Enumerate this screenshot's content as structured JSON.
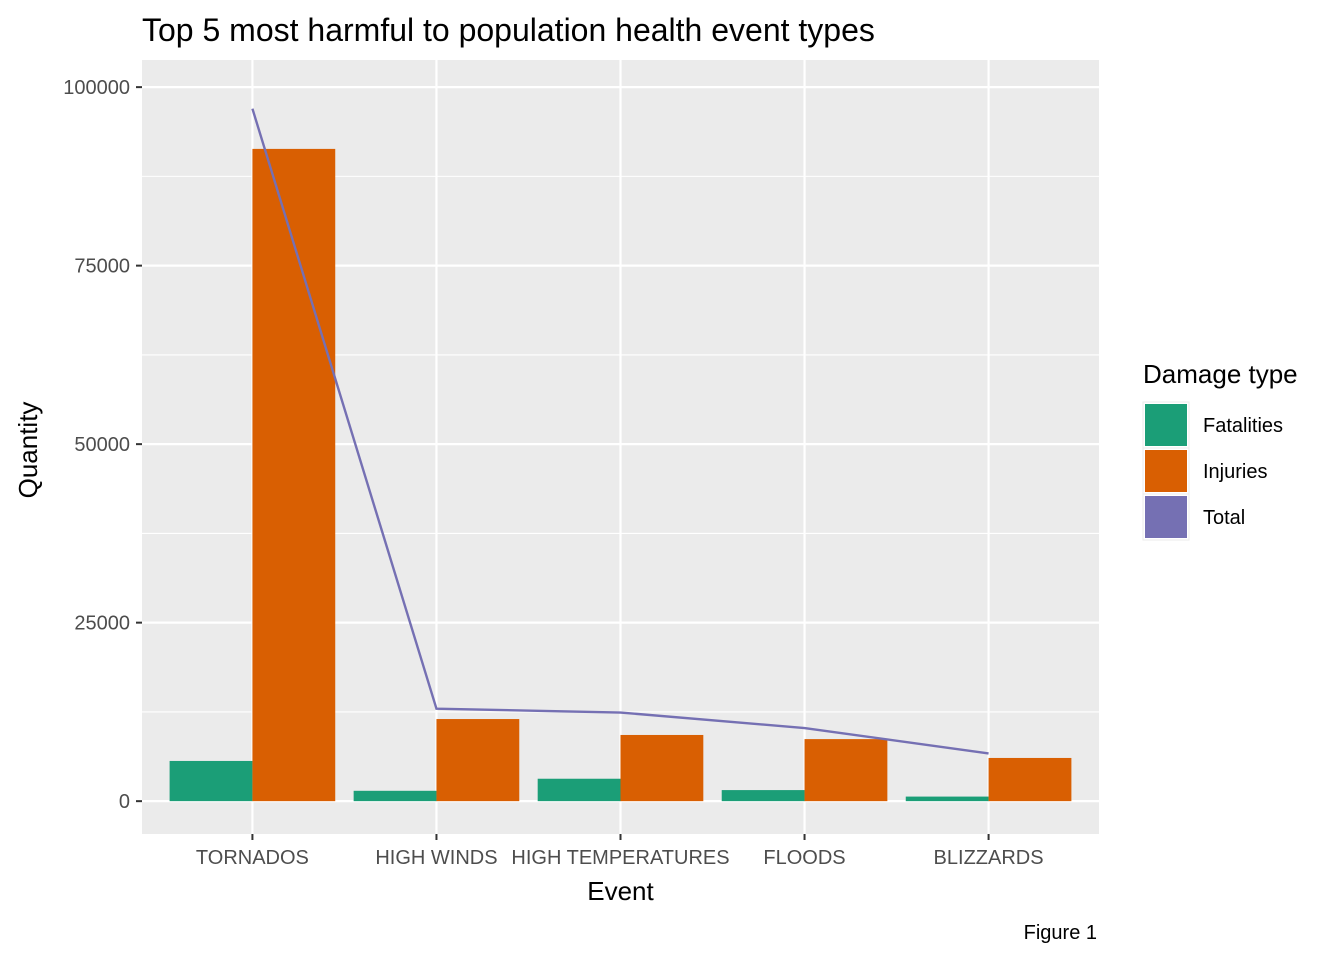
{
  "chart_data": {
    "type": "bar",
    "title": "Top 5 most harmful to population health event types",
    "xlabel": "Event",
    "ylabel": "Quantity",
    "caption": "Figure 1",
    "categories": [
      "TORNADOS",
      "HIGH WINDS",
      "HIGH TEMPERATURES",
      "FLOODS",
      "BLIZZARDS"
    ],
    "series": [
      {
        "name": "Fatalities",
        "type": "bar",
        "color": "#1b9e77",
        "values": [
          5630,
          1450,
          3140,
          1550,
          640
        ]
      },
      {
        "name": "Injuries",
        "type": "bar",
        "color": "#d95f02",
        "values": [
          91350,
          11500,
          9270,
          8690,
          6050
        ]
      },
      {
        "name": "Total",
        "type": "line",
        "color": "#7570b3",
        "values": [
          96980,
          12950,
          12410,
          10240,
          6690
        ]
      }
    ],
    "yticks": [
      0,
      25000,
      50000,
      75000,
      100000
    ],
    "ytick_labels": [
      "0",
      "25000",
      "50000",
      "75000",
      "100000"
    ],
    "ylim": [
      -4600,
      103800
    ],
    "grid": true,
    "legend": {
      "title": "Damage type",
      "position": "right"
    }
  }
}
